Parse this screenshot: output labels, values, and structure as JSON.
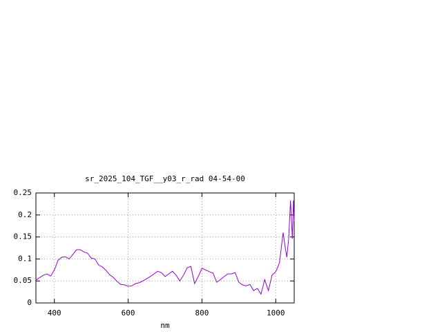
{
  "chart_data": {
    "type": "line",
    "title": "sr_2025_104_TGF__y03_r_rad 04-54-00",
    "x_label": "nm",
    "x": [
      350,
      370,
      380,
      390,
      400,
      410,
      420,
      430,
      440,
      450,
      460,
      470,
      480,
      490,
      500,
      510,
      520,
      530,
      540,
      550,
      560,
      570,
      580,
      590,
      600,
      610,
      620,
      630,
      640,
      650,
      660,
      670,
      680,
      690,
      700,
      710,
      720,
      730,
      740,
      750,
      760,
      770,
      780,
      790,
      800,
      810,
      820,
      830,
      840,
      850,
      860,
      870,
      880,
      890,
      900,
      910,
      920,
      930,
      940,
      950,
      960,
      970,
      980,
      990,
      1000,
      1010,
      1020,
      1025,
      1030,
      1035,
      1040,
      1045,
      1048,
      1050
    ],
    "series": [
      {
        "color": "#9400d3",
        "values": [
          0.052,
          0.063,
          0.066,
          0.061,
          0.075,
          0.097,
          0.104,
          0.105,
          0.1,
          0.11,
          0.121,
          0.121,
          0.116,
          0.113,
          0.102,
          0.1,
          0.086,
          0.082,
          0.074,
          0.064,
          0.058,
          0.049,
          0.042,
          0.041,
          0.038,
          0.039,
          0.044,
          0.046,
          0.05,
          0.055,
          0.06,
          0.066,
          0.072,
          0.069,
          0.06,
          0.066,
          0.072,
          0.063,
          0.05,
          0.063,
          0.08,
          0.083,
          0.044,
          0.06,
          0.079,
          0.075,
          0.071,
          0.068,
          0.047,
          0.053,
          0.06,
          0.066,
          0.066,
          0.069,
          0.047,
          0.041,
          0.039,
          0.042,
          0.028,
          0.033,
          0.02,
          0.053,
          0.028,
          0.063,
          0.071,
          0.091,
          0.16,
          0.13,
          0.104,
          0.146,
          0.233,
          0.146,
          0.233,
          0.186
        ]
      }
    ],
    "xlim": [
      350,
      1050
    ],
    "xticks": [
      400,
      600,
      800,
      1000
    ],
    "ylim": [
      0,
      0.25
    ],
    "yticks": [
      0,
      0.05,
      0.1,
      0.15,
      0.2,
      0.25
    ],
    "grid": true
  }
}
